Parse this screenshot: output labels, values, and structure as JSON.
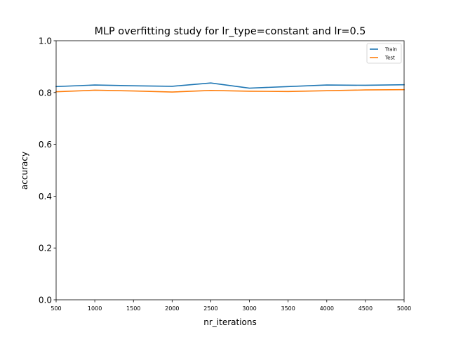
{
  "chart_data": {
    "type": "line",
    "title": "MLP overfitting study for lr_type=constant and lr=0.5",
    "xlabel": "nr_iterations",
    "ylabel": "accuracy",
    "x": [
      500,
      1000,
      1500,
      2000,
      2500,
      3000,
      3500,
      4000,
      4500,
      5000
    ],
    "xlim": [
      500,
      5000
    ],
    "ylim": [
      0.0,
      1.0
    ],
    "xticks": [
      "500",
      "1000",
      "1500",
      "2000",
      "2500",
      "3000",
      "3500",
      "4000",
      "4500",
      "5000"
    ],
    "yticks": [
      "0.0",
      "0.2",
      "0.4",
      "0.6",
      "0.8",
      "1.0"
    ],
    "grid": false,
    "legend_position": "top-right",
    "series": [
      {
        "name": "Train",
        "color": "#1f77b4",
        "values": [
          0.823,
          0.829,
          0.826,
          0.824,
          0.837,
          0.817,
          0.823,
          0.829,
          0.828,
          0.83
        ]
      },
      {
        "name": "Test",
        "color": "#ff7f0e",
        "values": [
          0.803,
          0.809,
          0.806,
          0.802,
          0.808,
          0.805,
          0.804,
          0.807,
          0.81,
          0.811
        ]
      }
    ]
  }
}
